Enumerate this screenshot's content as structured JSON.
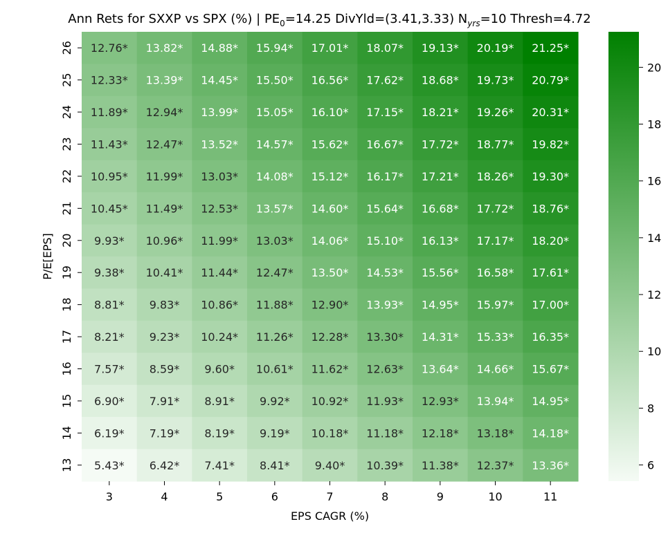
{
  "chart_data": {
    "type": "heatmap",
    "title_parts": {
      "lead": "Ann Rets for SXXP vs SPX (%) | PE",
      "pe_sub": "0",
      "pe_part": "=14.25 DivYld=(3.41,3.33) N",
      "n_sub": "yrs",
      "tail": "=10 Thresh=4.72"
    },
    "xlabel": "EPS CAGR (%)",
    "ylabel": "P/E[EPS]",
    "x_categories": [
      "3",
      "4",
      "5",
      "6",
      "7",
      "8",
      "9",
      "10",
      "11"
    ],
    "y_categories": [
      "26",
      "25",
      "24",
      "23",
      "22",
      "21",
      "20",
      "19",
      "18",
      "17",
      "16",
      "15",
      "14",
      "13"
    ],
    "values": [
      [
        12.76,
        13.82,
        14.88,
        15.94,
        17.01,
        18.07,
        19.13,
        20.19,
        21.25
      ],
      [
        12.33,
        13.39,
        14.45,
        15.5,
        16.56,
        17.62,
        18.68,
        19.73,
        20.79
      ],
      [
        11.89,
        12.94,
        13.99,
        15.05,
        16.1,
        17.15,
        18.21,
        19.26,
        20.31
      ],
      [
        11.43,
        12.47,
        13.52,
        14.57,
        15.62,
        16.67,
        17.72,
        18.77,
        19.82
      ],
      [
        10.95,
        11.99,
        13.03,
        14.08,
        15.12,
        16.17,
        17.21,
        18.26,
        19.3
      ],
      [
        10.45,
        11.49,
        12.53,
        13.57,
        14.6,
        15.64,
        16.68,
        17.72,
        18.76
      ],
      [
        9.93,
        10.96,
        11.99,
        13.03,
        14.06,
        15.1,
        16.13,
        17.17,
        18.2
      ],
      [
        9.38,
        10.41,
        11.44,
        12.47,
        13.5,
        14.53,
        15.56,
        16.58,
        17.61
      ],
      [
        8.81,
        9.83,
        10.86,
        11.88,
        12.9,
        13.93,
        14.95,
        15.97,
        17.0
      ],
      [
        8.21,
        9.23,
        10.24,
        11.26,
        12.28,
        13.3,
        14.31,
        15.33,
        16.35
      ],
      [
        7.57,
        8.59,
        9.6,
        10.61,
        11.62,
        12.63,
        13.64,
        14.66,
        15.67
      ],
      [
        6.9,
        7.91,
        8.91,
        9.92,
        10.92,
        11.93,
        12.93,
        13.94,
        14.95
      ],
      [
        6.19,
        7.19,
        8.19,
        9.19,
        10.18,
        11.18,
        12.18,
        13.18,
        14.18
      ],
      [
        5.43,
        6.42,
        7.41,
        8.41,
        9.4,
        10.39,
        11.38,
        12.37,
        13.36
      ]
    ],
    "cell_suffix": "*",
    "colorbar": {
      "min": 5.43,
      "max": 21.25,
      "ticks": [
        6,
        8,
        10,
        12,
        14,
        16,
        18,
        20
      ],
      "color_low": "#f5fbf5",
      "color_high": "#008000"
    },
    "label_colors": {
      "dark": "#262626",
      "light": "#ffffff"
    },
    "grid": false
  }
}
